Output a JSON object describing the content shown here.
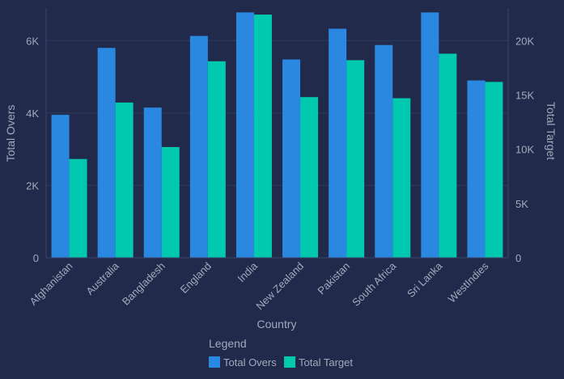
{
  "chart_data": {
    "type": "bar",
    "title": "",
    "xlabel": "Country",
    "categories": [
      "Afghanistan",
      "Australia",
      "Bangladesh",
      "England",
      "India",
      "New Zealand",
      "Pakistan",
      "South Africa",
      "Sri Lanka",
      "WestIndies"
    ],
    "series": [
      {
        "name": "Total Overs",
        "axis": "left",
        "color": "#2a88e1",
        "values": [
          3950,
          5800,
          4150,
          6130,
          6780,
          5480,
          6330,
          5880,
          6780,
          4900
        ]
      },
      {
        "name": "Total Target",
        "axis": "right",
        "color": "#00c9b0",
        "values": [
          9100,
          14300,
          10200,
          18100,
          22400,
          14800,
          18200,
          14700,
          18800,
          16200
        ]
      }
    ],
    "y_left": {
      "label": "Total Overs",
      "lim": [
        0,
        6900
      ],
      "ticks": [
        0,
        2000,
        4000,
        6000
      ],
      "tick_labels": [
        "0",
        "2K",
        "4K",
        "6K"
      ]
    },
    "y_right": {
      "label": "Total Target",
      "lim": [
        0,
        23000
      ],
      "ticks": [
        0,
        5000,
        10000,
        15000,
        20000
      ],
      "tick_labels": [
        "0",
        "5K",
        "10K",
        "15K",
        "20K"
      ]
    },
    "grid": true,
    "legend": {
      "title": "Legend",
      "position": "bottom"
    }
  }
}
